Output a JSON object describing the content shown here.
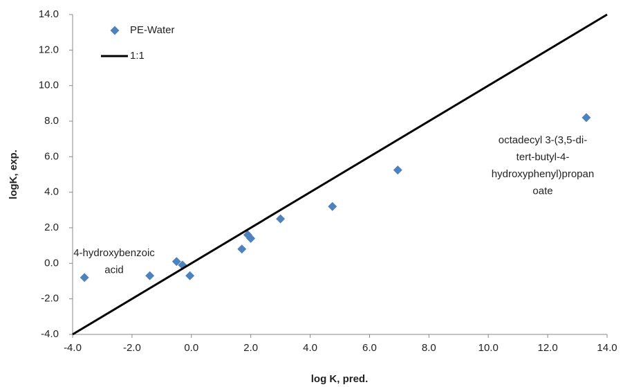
{
  "chart_data": {
    "type": "scatter",
    "x_label": "log K, pred.",
    "y_label": "logK, exp.",
    "xlim": [
      -4,
      14
    ],
    "ylim": [
      -4,
      14
    ],
    "xticks": [
      {
        "value": -4,
        "label": "-4.0"
      },
      {
        "value": -2,
        "label": "-2.0"
      },
      {
        "value": 0,
        "label": "0.0"
      },
      {
        "value": 2,
        "label": "2.0"
      },
      {
        "value": 4,
        "label": "4.0"
      },
      {
        "value": 6,
        "label": "6.0"
      },
      {
        "value": 8,
        "label": "8.0"
      },
      {
        "value": 10,
        "label": "10.0"
      },
      {
        "value": 12,
        "label": "12.0"
      },
      {
        "value": 14,
        "label": "14.0"
      }
    ],
    "yticks": [
      {
        "value": -4,
        "label": "-4.0"
      },
      {
        "value": -2,
        "label": "-2.0"
      },
      {
        "value": 0,
        "label": "0.0"
      },
      {
        "value": 2,
        "label": "2.0"
      },
      {
        "value": 4,
        "label": "4.0"
      },
      {
        "value": 6,
        "label": "6.0"
      },
      {
        "value": 8,
        "label": "8.0"
      },
      {
        "value": 10,
        "label": "10.0"
      },
      {
        "value": 12,
        "label": "12.0"
      },
      {
        "value": 14,
        "label": "14.0"
      }
    ],
    "grid": false,
    "legend": "top-left",
    "series": [
      {
        "name": "PE-Water",
        "type": "scatter",
        "color": "#4f81bd",
        "x": [
          -3.6,
          -1.4,
          -0.5,
          -0.3,
          -0.05,
          1.7,
          1.9,
          2.0,
          3.0,
          4.75,
          6.95,
          13.3
        ],
        "values": [
          -0.8,
          -0.7,
          0.1,
          -0.1,
          -0.7,
          0.8,
          1.6,
          1.4,
          2.5,
          3.2,
          5.25,
          8.2
        ]
      },
      {
        "name": "1:1",
        "type": "line",
        "color": "#000000",
        "x": [
          -4,
          14
        ],
        "values": [
          -4,
          14
        ]
      }
    ],
    "annotations": [
      {
        "lines": [
          "4-hydroxybenzoic",
          "acid"
        ]
      },
      {
        "lines": [
          "octadecyl 3-(3,5-di-",
          "tert-butyl-4-",
          "hydroxyphenyl)propan",
          "oate"
        ]
      }
    ]
  }
}
